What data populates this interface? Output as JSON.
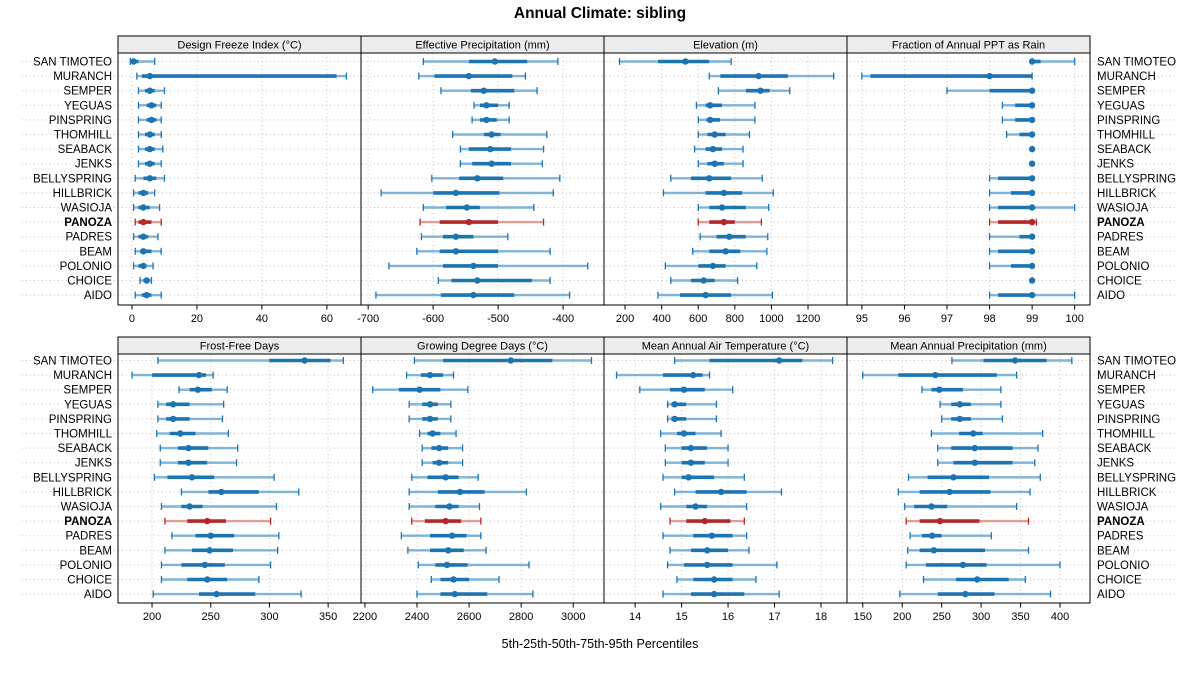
{
  "title": "Annual Climate: sibling",
  "caption": "5th-25th-50th-75th-95th Percentiles",
  "highlight_site": "PANOZA",
  "sites": [
    "SAN TIMOTEO",
    "MURANCH",
    "SEMPER",
    "YEGUAS",
    "PINSPRING",
    "THOMHILL",
    "SEABACK",
    "JENKS",
    "BELLYSPRING",
    "HILLBRICK",
    "WASIOJA",
    "PANOZA",
    "PADRES",
    "BEAM",
    "POLONIO",
    "CHOICE",
    "AIDO"
  ],
  "colors": {
    "blue": "#1c74b2",
    "blue_light": "#7fb3d8",
    "red": "#b3282a",
    "red_light": "#e29d98",
    "grid": "#c4c4c4",
    "strip_bg": "#ececec",
    "border": "#000000",
    "text": "#000000"
  },
  "chart_data": {
    "type": "dotplot-percentile-trellis",
    "percentile_labels": [
      "5th",
      "25th",
      "50th",
      "75th",
      "95th"
    ],
    "layout": "2 rows x 4 columns",
    "panels": [
      {
        "title": "Design Freeze Index (°C)",
        "xlim": [
          -4.3,
          70.5
        ],
        "ticks": [
          0,
          20,
          40,
          60
        ],
        "values": [
          [
            -0.5,
            0,
            0.5,
            2,
            7
          ],
          [
            1.5,
            3,
            5.5,
            63,
            66
          ],
          [
            2,
            4,
            5.5,
            7,
            10
          ],
          [
            2,
            4.5,
            6,
            7.5,
            9
          ],
          [
            2,
            4.5,
            6,
            7.5,
            9
          ],
          [
            2,
            4,
            5.5,
            7,
            9
          ],
          [
            2,
            4,
            5.5,
            7,
            9.5
          ],
          [
            2,
            4,
            5.5,
            7,
            9
          ],
          [
            1,
            3.5,
            5.5,
            7.5,
            10
          ],
          [
            0.5,
            2,
            3.5,
            5,
            7
          ],
          [
            0.5,
            2,
            3.5,
            5.5,
            8.5
          ],
          [
            1,
            2,
            3.5,
            6,
            9
          ],
          [
            0.5,
            2,
            3.5,
            5,
            8
          ],
          [
            1,
            2.5,
            3.5,
            6,
            9
          ],
          [
            0.5,
            2,
            3.5,
            4.5,
            6.5
          ],
          [
            2.5,
            3.5,
            4.5,
            5.5,
            6
          ],
          [
            1,
            3,
            4.5,
            6,
            9
          ]
        ]
      },
      {
        "title": "Effective Precipitation (mm)",
        "xlim": [
          -711,
          -337
        ],
        "ticks": [
          -700,
          -600,
          -500,
          -400
        ],
        "values": [
          [
            -615,
            -545,
            -505,
            -455,
            -408
          ],
          [
            -622,
            -598,
            -545,
            -478,
            -458
          ],
          [
            -588,
            -542,
            -522,
            -475,
            -440
          ],
          [
            -537,
            -528,
            -518,
            -500,
            -483
          ],
          [
            -540,
            -528,
            -518,
            -502,
            -483
          ],
          [
            -570,
            -522,
            -510,
            -496,
            -425
          ],
          [
            -558,
            -545,
            -512,
            -480,
            -430
          ],
          [
            -558,
            -540,
            -510,
            -480,
            -432
          ],
          [
            -602,
            -560,
            -532,
            -492,
            -405
          ],
          [
            -680,
            -600,
            -565,
            -498,
            -415
          ],
          [
            -615,
            -580,
            -548,
            -528,
            -445
          ],
          [
            -620,
            -590,
            -545,
            -500,
            -430
          ],
          [
            -618,
            -585,
            -565,
            -538,
            -485
          ],
          [
            -625,
            -590,
            -565,
            -500,
            -420
          ],
          [
            -668,
            -585,
            -538,
            -500,
            -362
          ],
          [
            -592,
            -572,
            -532,
            -448,
            -420
          ],
          [
            -688,
            -588,
            -538,
            -475,
            -390
          ]
        ]
      },
      {
        "title": "Elevation (m)",
        "xlim": [
          85,
          1413
        ],
        "ticks": [
          200,
          400,
          600,
          800,
          1000,
          1200
        ],
        "values": [
          [
            170,
            380,
            530,
            660,
            780
          ],
          [
            660,
            720,
            930,
            1090,
            1340
          ],
          [
            710,
            860,
            940,
            990,
            1100
          ],
          [
            590,
            640,
            665,
            730,
            910
          ],
          [
            600,
            645,
            665,
            720,
            910
          ],
          [
            600,
            650,
            690,
            750,
            880
          ],
          [
            580,
            640,
            680,
            730,
            845
          ],
          [
            600,
            650,
            690,
            740,
            845
          ],
          [
            450,
            560,
            660,
            780,
            950
          ],
          [
            410,
            640,
            740,
            840,
            1010
          ],
          [
            600,
            660,
            730,
            860,
            985
          ],
          [
            600,
            660,
            740,
            800,
            945
          ],
          [
            610,
            700,
            770,
            860,
            980
          ],
          [
            570,
            660,
            750,
            830,
            975
          ],
          [
            420,
            600,
            680,
            750,
            920
          ],
          [
            450,
            560,
            630,
            690,
            815
          ],
          [
            380,
            500,
            640,
            780,
            1005
          ]
        ]
      },
      {
        "title": "Fraction of Annual PPT as Rain",
        "xlim": [
          94.65,
          100.36
        ],
        "ticks": [
          95,
          96,
          97,
          98,
          99,
          100
        ],
        "values": [
          [
            99,
            99,
            99,
            99.2,
            100
          ],
          [
            95,
            95.2,
            98,
            99,
            99
          ],
          [
            97,
            98,
            99,
            99,
            99
          ],
          [
            98.3,
            98.6,
            99,
            99,
            99
          ],
          [
            98.3,
            98.6,
            99,
            99,
            99
          ],
          [
            98.4,
            98.7,
            99,
            99,
            99
          ],
          [
            99,
            99,
            99,
            99,
            99
          ],
          [
            99,
            99,
            99,
            99,
            99
          ],
          [
            98,
            98.2,
            99,
            99,
            99
          ],
          [
            98,
            98.5,
            99,
            99,
            99
          ],
          [
            98,
            98.2,
            99,
            99,
            100
          ],
          [
            98,
            98.2,
            99,
            99,
            99.1
          ],
          [
            98,
            98.7,
            99,
            99,
            99
          ],
          [
            98,
            98.2,
            99,
            99,
            99
          ],
          [
            98,
            98.5,
            99,
            99,
            99
          ],
          [
            99,
            99,
            99,
            99,
            99
          ],
          [
            98,
            98.2,
            99,
            99,
            100
          ]
        ]
      },
      {
        "title": "Frost-Free Days",
        "xlim": [
          171,
          378
        ],
        "ticks": [
          200,
          250,
          300,
          350
        ],
        "values": [
          [
            205,
            300,
            330,
            352,
            363
          ],
          [
            183,
            200,
            240,
            246,
            252
          ],
          [
            223,
            232,
            239,
            251,
            264
          ],
          [
            205,
            212,
            218,
            232,
            261
          ],
          [
            205,
            212,
            218,
            232,
            260
          ],
          [
            204,
            215,
            224,
            237,
            265
          ],
          [
            207,
            222,
            231,
            248,
            273
          ],
          [
            207,
            222,
            231,
            247,
            272
          ],
          [
            202,
            213,
            234,
            253,
            304
          ],
          [
            225,
            248,
            259,
            291,
            325
          ],
          [
            208,
            225,
            232,
            243,
            306
          ],
          [
            211,
            230,
            247,
            263,
            301
          ],
          [
            217,
            237,
            250,
            270,
            308
          ],
          [
            211,
            234,
            249,
            269,
            307
          ],
          [
            208,
            225,
            245,
            262,
            301
          ],
          [
            208,
            230,
            247,
            264,
            291
          ],
          [
            201,
            240,
            255,
            288,
            327
          ]
        ]
      },
      {
        "title": "Growing Degree Days (°C)",
        "xlim": [
          2185,
          3118
        ],
        "ticks": [
          2200,
          2400,
          2600,
          2800,
          3000
        ],
        "values": [
          [
            2390,
            2500,
            2760,
            2920,
            3070
          ],
          [
            2360,
            2415,
            2450,
            2500,
            2540
          ],
          [
            2230,
            2330,
            2410,
            2490,
            2595
          ],
          [
            2370,
            2420,
            2450,
            2480,
            2530
          ],
          [
            2370,
            2420,
            2450,
            2480,
            2530
          ],
          [
            2410,
            2440,
            2460,
            2490,
            2550
          ],
          [
            2420,
            2455,
            2485,
            2520,
            2575
          ],
          [
            2420,
            2460,
            2485,
            2520,
            2575
          ],
          [
            2380,
            2440,
            2510,
            2560,
            2635
          ],
          [
            2370,
            2480,
            2565,
            2660,
            2820
          ],
          [
            2370,
            2470,
            2525,
            2560,
            2640
          ],
          [
            2380,
            2430,
            2510,
            2570,
            2645
          ],
          [
            2340,
            2450,
            2535,
            2590,
            2645
          ],
          [
            2365,
            2450,
            2520,
            2580,
            2665
          ],
          [
            2405,
            2470,
            2515,
            2595,
            2830
          ],
          [
            2455,
            2490,
            2540,
            2600,
            2715
          ],
          [
            2400,
            2490,
            2545,
            2670,
            2845
          ]
        ]
      },
      {
        "title": "Mean Annual Air Temperature (°C)",
        "xlim": [
          13.33,
          18.56
        ],
        "ticks": [
          14,
          15,
          16,
          17,
          18
        ],
        "values": [
          [
            14.85,
            15.6,
            17.1,
            17.6,
            18.25
          ],
          [
            13.6,
            14.6,
            15.25,
            15.45,
            15.6
          ],
          [
            14.1,
            14.75,
            15.05,
            15.5,
            16.1
          ],
          [
            14.7,
            14.78,
            14.85,
            15.1,
            15.75
          ],
          [
            14.7,
            14.78,
            14.85,
            15.1,
            15.75
          ],
          [
            14.55,
            14.9,
            15.05,
            15.3,
            15.85
          ],
          [
            14.65,
            15.0,
            15.2,
            15.55,
            16.0
          ],
          [
            14.65,
            15.0,
            15.2,
            15.5,
            16.0
          ],
          [
            14.6,
            15.0,
            15.15,
            15.7,
            16.35
          ],
          [
            14.85,
            15.3,
            15.85,
            16.4,
            17.15
          ],
          [
            14.55,
            15.1,
            15.3,
            15.55,
            16.4
          ],
          [
            14.75,
            15.1,
            15.5,
            16.05,
            16.35
          ],
          [
            14.6,
            15.25,
            15.65,
            16.1,
            16.4
          ],
          [
            14.75,
            15.2,
            15.55,
            16.0,
            16.45
          ],
          [
            14.7,
            15.05,
            15.55,
            16.1,
            17.05
          ],
          [
            14.9,
            15.25,
            15.7,
            16.1,
            16.6
          ],
          [
            14.6,
            15.2,
            15.7,
            16.35,
            17.1
          ]
        ]
      },
      {
        "title": "Mean Annual Precipitation (mm)",
        "xlim": [
          130,
          438
        ],
        "ticks": [
          150,
          200,
          250,
          300,
          350,
          400
        ],
        "values": [
          [
            263,
            303,
            343,
            383,
            415
          ],
          [
            150,
            195,
            242,
            320,
            345
          ],
          [
            225,
            237,
            247,
            277,
            325
          ],
          [
            248,
            262,
            273,
            287,
            325
          ],
          [
            250,
            262,
            273,
            287,
            327
          ],
          [
            237,
            272,
            290,
            302,
            378
          ],
          [
            245,
            262,
            292,
            340,
            372
          ],
          [
            245,
            265,
            292,
            340,
            368
          ],
          [
            208,
            232,
            265,
            310,
            375
          ],
          [
            195,
            222,
            260,
            312,
            362
          ],
          [
            203,
            215,
            237,
            257,
            345
          ],
          [
            205,
            222,
            248,
            298,
            360
          ],
          [
            210,
            225,
            238,
            250,
            313
          ],
          [
            207,
            222,
            240,
            305,
            360
          ],
          [
            205,
            230,
            277,
            307,
            400
          ],
          [
            227,
            268,
            295,
            335,
            356
          ],
          [
            197,
            245,
            280,
            317,
            388
          ]
        ]
      }
    ]
  }
}
